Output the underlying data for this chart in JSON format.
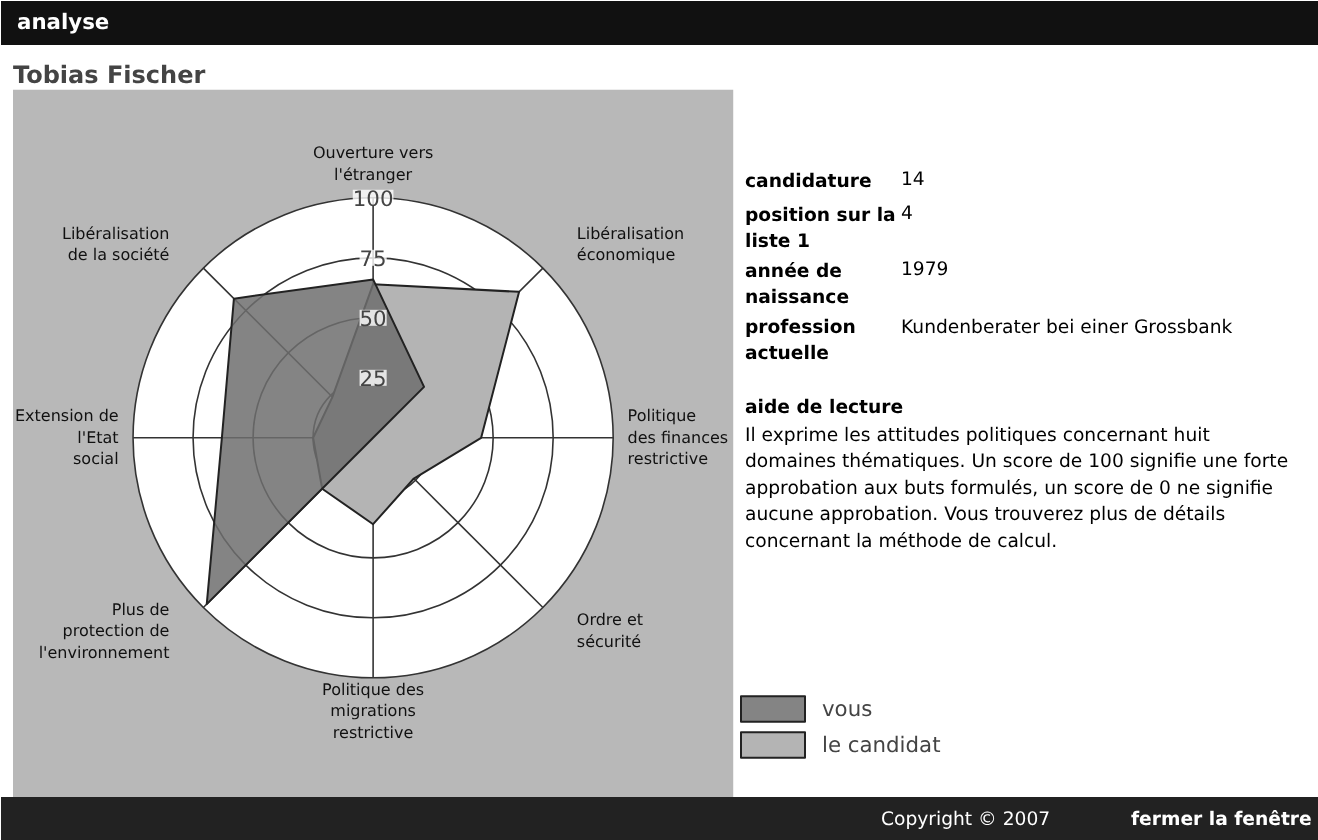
{
  "chart_data": {
    "type": "radar",
    "title": "Tobias Fischer",
    "categories": [
      "Ouverture vers l'étranger",
      "Libéralisation économique",
      "Politique des finances restrictive",
      "Ordre et sécurité",
      "Politique des migrations restrictive",
      "Plus de protection de l'environnement",
      "Extension de l'Etat social",
      "Libéralisation de la société"
    ],
    "series": [
      {
        "name": "le candidat",
        "color": "#b4b4b4",
        "values": [
          64,
          86,
          45,
          24,
          36,
          30,
          25,
          24
        ]
      },
      {
        "name": "vous",
        "color": "#6e6e6e",
        "values": [
          66,
          30,
          0,
          0,
          0,
          98,
          63,
          82
        ]
      }
    ],
    "ylim": [
      0,
      100
    ],
    "yticks": [
      25,
      50,
      75,
      100
    ],
    "grid": true,
    "legend": "right",
    "annotations": [
      "analyse",
      "candidature",
      "14",
      "position sur la liste 1",
      "4",
      "année de naissance",
      "1979",
      "profession actuelle",
      "Kundenberater bei einer Grossbank",
      "aide de lecture",
      "Il exprime les attitudes politiques concernant huit domaines thématiques. Un score de 100 signifie une forte approbation aux buts formulés, un score de 0 ne signifie aucune approbation. Vous trouverez plus de détails concernant la méthode de calcul.",
      "Copyright © 2007",
      "fermer la fenêtre"
    ]
  }
}
